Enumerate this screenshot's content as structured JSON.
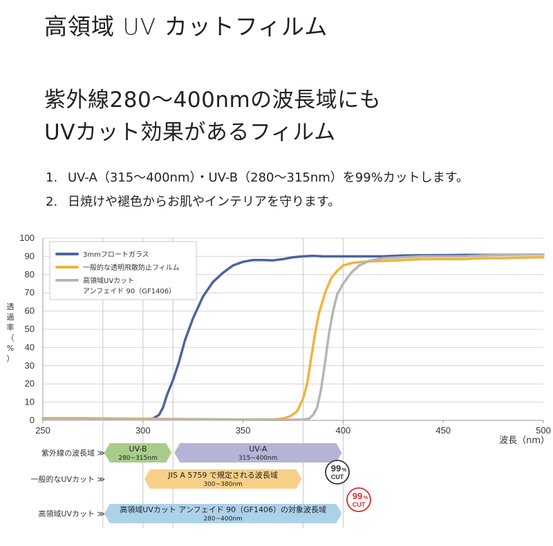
{
  "header": {
    "title": "高領域 UV カットフィルム",
    "subtitle_line1": "紫外線280～400nmの波長域にも",
    "subtitle_line2": "UVカット効果があるフィルム",
    "points": [
      {
        "num": "1.",
        "text": "UV-A（315～400nm）・UV-B（280～315nm）を99%カットします。"
      },
      {
        "num": "2.",
        "text": "日焼けや褪色からお肌やインテリアを守ります。"
      }
    ]
  },
  "chart_data": {
    "type": "line",
    "ylabel_chars": [
      "透",
      "過",
      "率",
      "（",
      "%",
      "）"
    ],
    "xlabel": "波長（nm）",
    "xlim": [
      250,
      500
    ],
    "ylim": [
      0,
      100
    ],
    "x_ticks": [
      "250",
      "300",
      "350",
      "400",
      "450",
      "500"
    ],
    "y_ticks": [
      "0",
      "10",
      "20",
      "30",
      "40",
      "50",
      "60",
      "70",
      "80",
      "90",
      "100"
    ],
    "grid_vertical_at": [
      280,
      300,
      315,
      380,
      400
    ],
    "legend": {
      "placement": "top-left"
    },
    "series": [
      {
        "name": "3mmフロートガラス",
        "color": "#4a64a0",
        "points": [
          [
            250,
            1
          ],
          [
            260,
            0.8
          ],
          [
            270,
            0.6
          ],
          [
            280,
            0.5
          ],
          [
            290,
            0.5
          ],
          [
            300,
            0.6
          ],
          [
            305,
            1
          ],
          [
            308,
            3
          ],
          [
            310,
            7
          ],
          [
            312,
            14
          ],
          [
            315,
            22
          ],
          [
            318,
            32
          ],
          [
            321,
            44
          ],
          [
            325,
            56
          ],
          [
            330,
            68
          ],
          [
            335,
            76
          ],
          [
            340,
            81
          ],
          [
            345,
            85
          ],
          [
            350,
            87
          ],
          [
            355,
            88
          ],
          [
            360,
            88
          ],
          [
            365,
            87.8
          ],
          [
            370,
            88.5
          ],
          [
            375,
            89.5
          ],
          [
            380,
            90
          ],
          [
            385,
            90.3
          ],
          [
            390,
            90
          ],
          [
            400,
            90
          ],
          [
            410,
            90
          ],
          [
            420,
            90
          ],
          [
            430,
            90.5
          ],
          [
            440,
            90.6
          ],
          [
            450,
            90.7
          ],
          [
            460,
            90.8
          ],
          [
            470,
            90.8
          ],
          [
            480,
            90.9
          ],
          [
            490,
            91
          ],
          [
            500,
            91
          ]
        ]
      },
      {
        "name": "一般的な透明飛散防止フィルム",
        "color": "#f2b33a",
        "points": [
          [
            250,
            1.2
          ],
          [
            270,
            1.2
          ],
          [
            290,
            1
          ],
          [
            310,
            0.8
          ],
          [
            330,
            0.7
          ],
          [
            350,
            0.5
          ],
          [
            365,
            0.5
          ],
          [
            370,
            1
          ],
          [
            374,
            2.5
          ],
          [
            377,
            5
          ],
          [
            380,
            12
          ],
          [
            382,
            20
          ],
          [
            384,
            34
          ],
          [
            386,
            48
          ],
          [
            388,
            59
          ],
          [
            391,
            70
          ],
          [
            394,
            78
          ],
          [
            397,
            82
          ],
          [
            400,
            85
          ],
          [
            405,
            86.5
          ],
          [
            410,
            87
          ],
          [
            420,
            87.5
          ],
          [
            430,
            88
          ],
          [
            440,
            88.5
          ],
          [
            450,
            88.5
          ],
          [
            460,
            88.5
          ],
          [
            470,
            89
          ],
          [
            480,
            89
          ],
          [
            490,
            89.3
          ],
          [
            500,
            89.5
          ]
        ]
      },
      {
        "name": "高領域UVカット\nアンフェイド 90（GF1406）",
        "color": "#b5b5b5",
        "points": [
          [
            250,
            0.5
          ],
          [
            300,
            0.5
          ],
          [
            340,
            0.4
          ],
          [
            370,
            0.3
          ],
          [
            380,
            0.4
          ],
          [
            383,
            1
          ],
          [
            385,
            3
          ],
          [
            387,
            7
          ],
          [
            389,
            17
          ],
          [
            391,
            32
          ],
          [
            393,
            48
          ],
          [
            395,
            60
          ],
          [
            397,
            69
          ],
          [
            400,
            75
          ],
          [
            404,
            81
          ],
          [
            408,
            85
          ],
          [
            413,
            87.5
          ],
          [
            420,
            89
          ],
          [
            430,
            89.5
          ],
          [
            440,
            90
          ],
          [
            450,
            90
          ],
          [
            460,
            90
          ],
          [
            470,
            90.5
          ],
          [
            480,
            91
          ],
          [
            490,
            91
          ],
          [
            500,
            91
          ]
        ]
      }
    ]
  },
  "bands": {
    "rows": [
      {
        "label": "紫外線の波長域 ≫"
      },
      {
        "label": "一般的なUVカット ≫"
      },
      {
        "label": "高領域UVカット ≫"
      }
    ],
    "uvb": {
      "name": "UV-B",
      "range": "280~315nm",
      "from": 280,
      "to": 315,
      "color": "#a9cc8a"
    },
    "uva": {
      "name": "UV-A",
      "range": "315~400nm",
      "from": 315,
      "to": 400,
      "color": "#b4b4d6"
    },
    "general": {
      "name": "JIS A 5759 で規定される波長域",
      "range": "300~380nm",
      "from": 300,
      "to": 380,
      "color": "#f7d089"
    },
    "high": {
      "name": "高領域UVカット アンフェイド 90（GF1406）の対象波長域",
      "range": "280~400nm",
      "from": 280,
      "to": 400,
      "color": "#acd1e9"
    },
    "badge_general": {
      "big": "99",
      "small": "%",
      "cut": "CUT",
      "color": "#333333"
    },
    "badge_high": {
      "big": "99",
      "small": "%",
      "cut": "CUT",
      "color": "#e0262e"
    }
  }
}
